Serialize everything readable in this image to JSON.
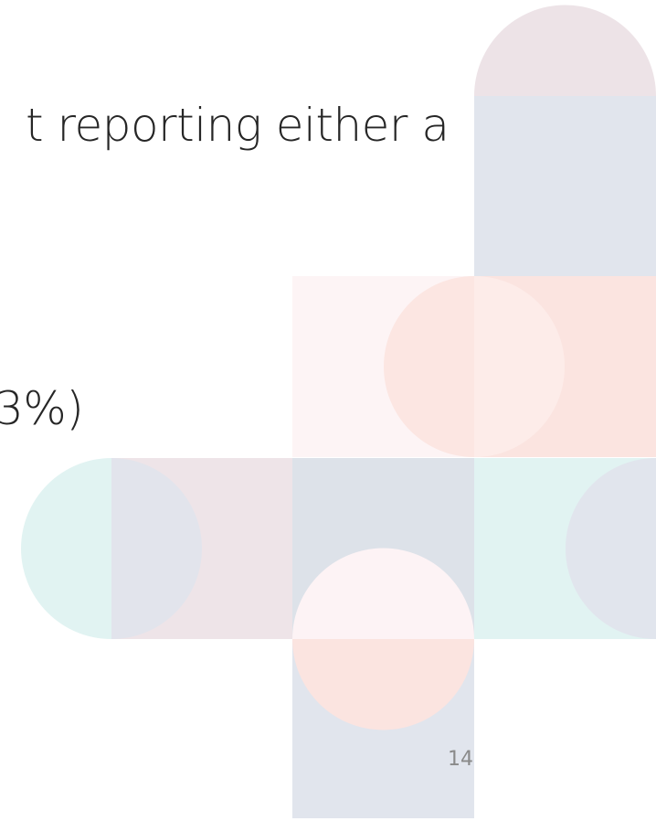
{
  "body": {
    "line_1": "t reporting either a",
    "line_2": "3%)"
  },
  "footer": {
    "page_number": "14"
  }
}
